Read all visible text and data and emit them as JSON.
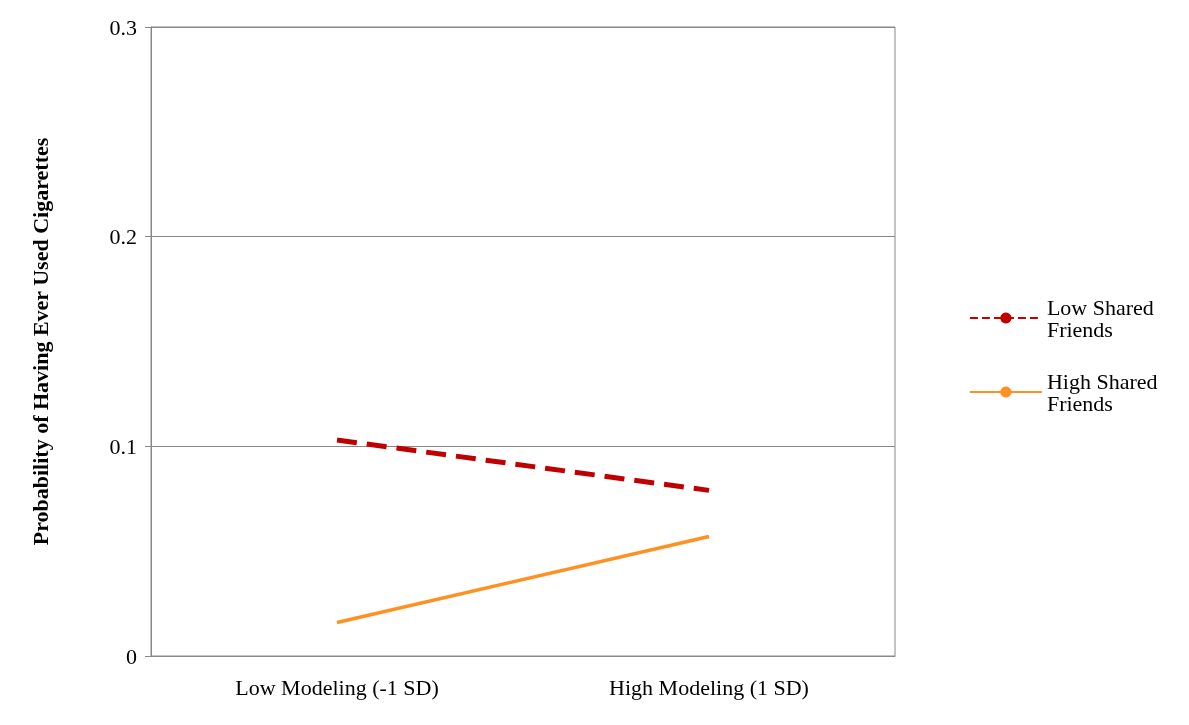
{
  "chart_data": {
    "type": "line",
    "ylabel": "Probability of Having Ever Used Cigarettes",
    "categories": [
      "Low Modeling (-1 SD)",
      "High Modeling (1 SD)"
    ],
    "series": [
      {
        "name": "Low Shared Friends",
        "color": "#c00000",
        "values": [
          0.103,
          0.079
        ],
        "line_style": "dashed"
      },
      {
        "name": "High Shared Friends",
        "color": "#ff9022",
        "values": [
          0.016,
          0.057
        ],
        "line_style": "solid"
      }
    ],
    "ylim": [
      0,
      0.3
    ],
    "yticks": [
      0,
      0.1,
      0.2,
      0.3
    ],
    "grid": "y",
    "legend": "right",
    "marker": "none"
  }
}
